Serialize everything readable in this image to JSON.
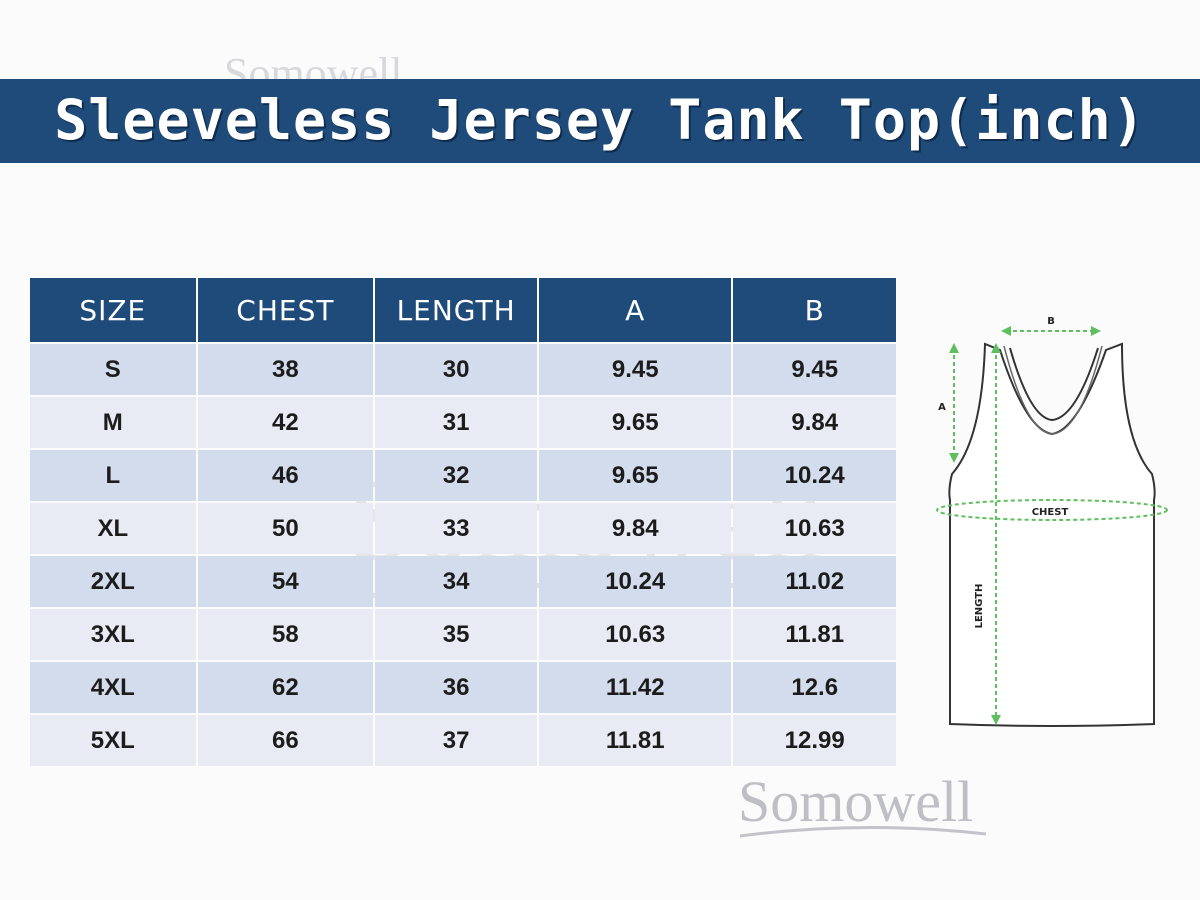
{
  "title": "Sleeveless Jersey Tank Top(inch)",
  "watermark": "Somowell",
  "table": {
    "headers": [
      "SIZE",
      "CHEST",
      "LENGTH",
      "A",
      "B"
    ],
    "rows": [
      [
        "S",
        "38",
        "30",
        "9.45",
        "9.45"
      ],
      [
        "M",
        "42",
        "31",
        "9.65",
        "9.84"
      ],
      [
        "L",
        "46",
        "32",
        "9.65",
        "10.24"
      ],
      [
        "XL",
        "50",
        "33",
        "9.84",
        "10.63"
      ],
      [
        "2XL",
        "54",
        "34",
        "10.24",
        "11.02"
      ],
      [
        "3XL",
        "58",
        "35",
        "10.63",
        "11.81"
      ],
      [
        "4XL",
        "62",
        "36",
        "11.42",
        "12.6"
      ],
      [
        "5XL",
        "66",
        "37",
        "11.81",
        "12.99"
      ]
    ]
  },
  "diagram": {
    "labels": {
      "a": "A",
      "b": "B",
      "chest": "CHEST",
      "length": "LENGTH"
    }
  },
  "colors": {
    "banner": "#1f4b7b",
    "row_odd": "#d3dcec",
    "row_even": "#e8ebf4",
    "measure_line": "#5fbf5f"
  }
}
